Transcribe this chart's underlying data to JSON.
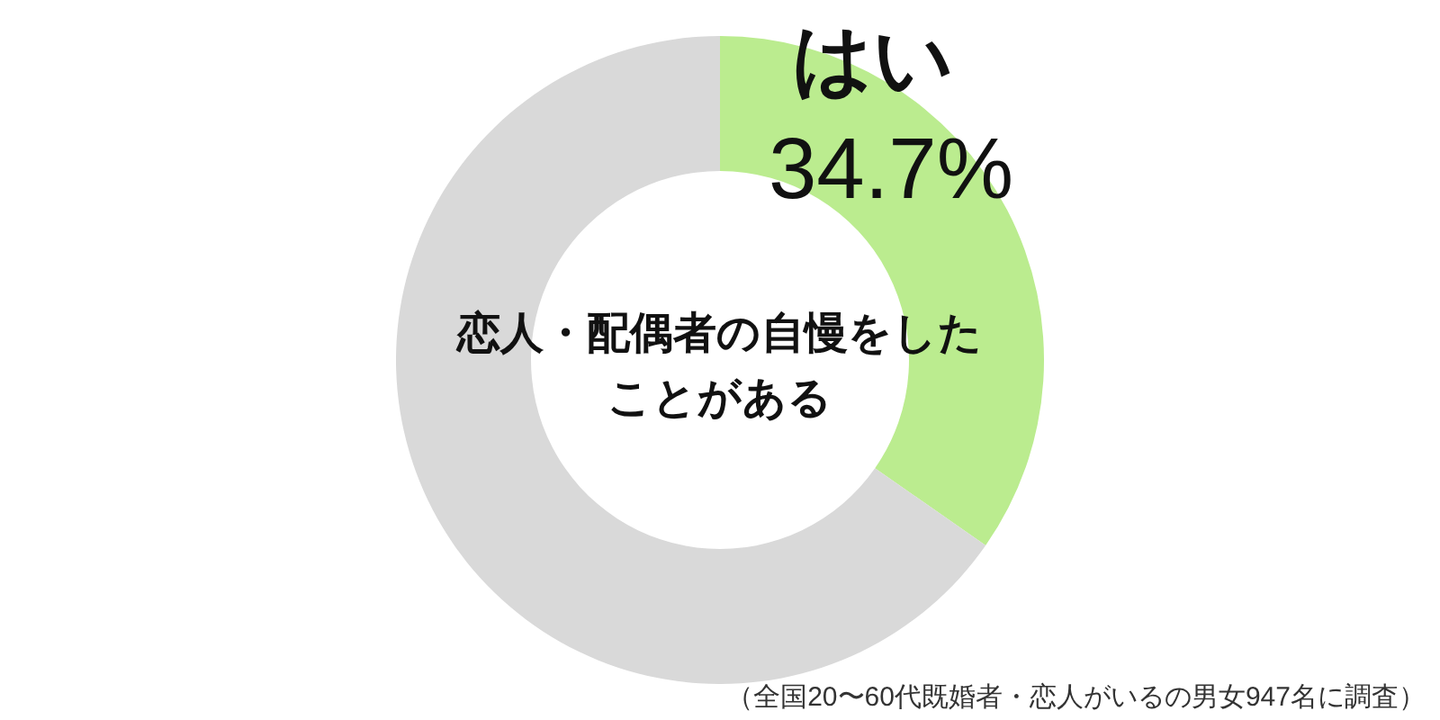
{
  "chart_data": {
    "type": "donut",
    "title": "恋人・配偶者の自慢をしたことがある",
    "categories": [
      "はい",
      null
    ],
    "values": [
      34.7,
      65.3
    ],
    "colors": [
      "#bbec8f",
      "#d9d9d9"
    ],
    "value_labels": [
      "34.7%",
      null
    ],
    "annotations": [
      "（全国20〜60代既婚者・恋人がいるの男女947名に調査）"
    ]
  }
}
